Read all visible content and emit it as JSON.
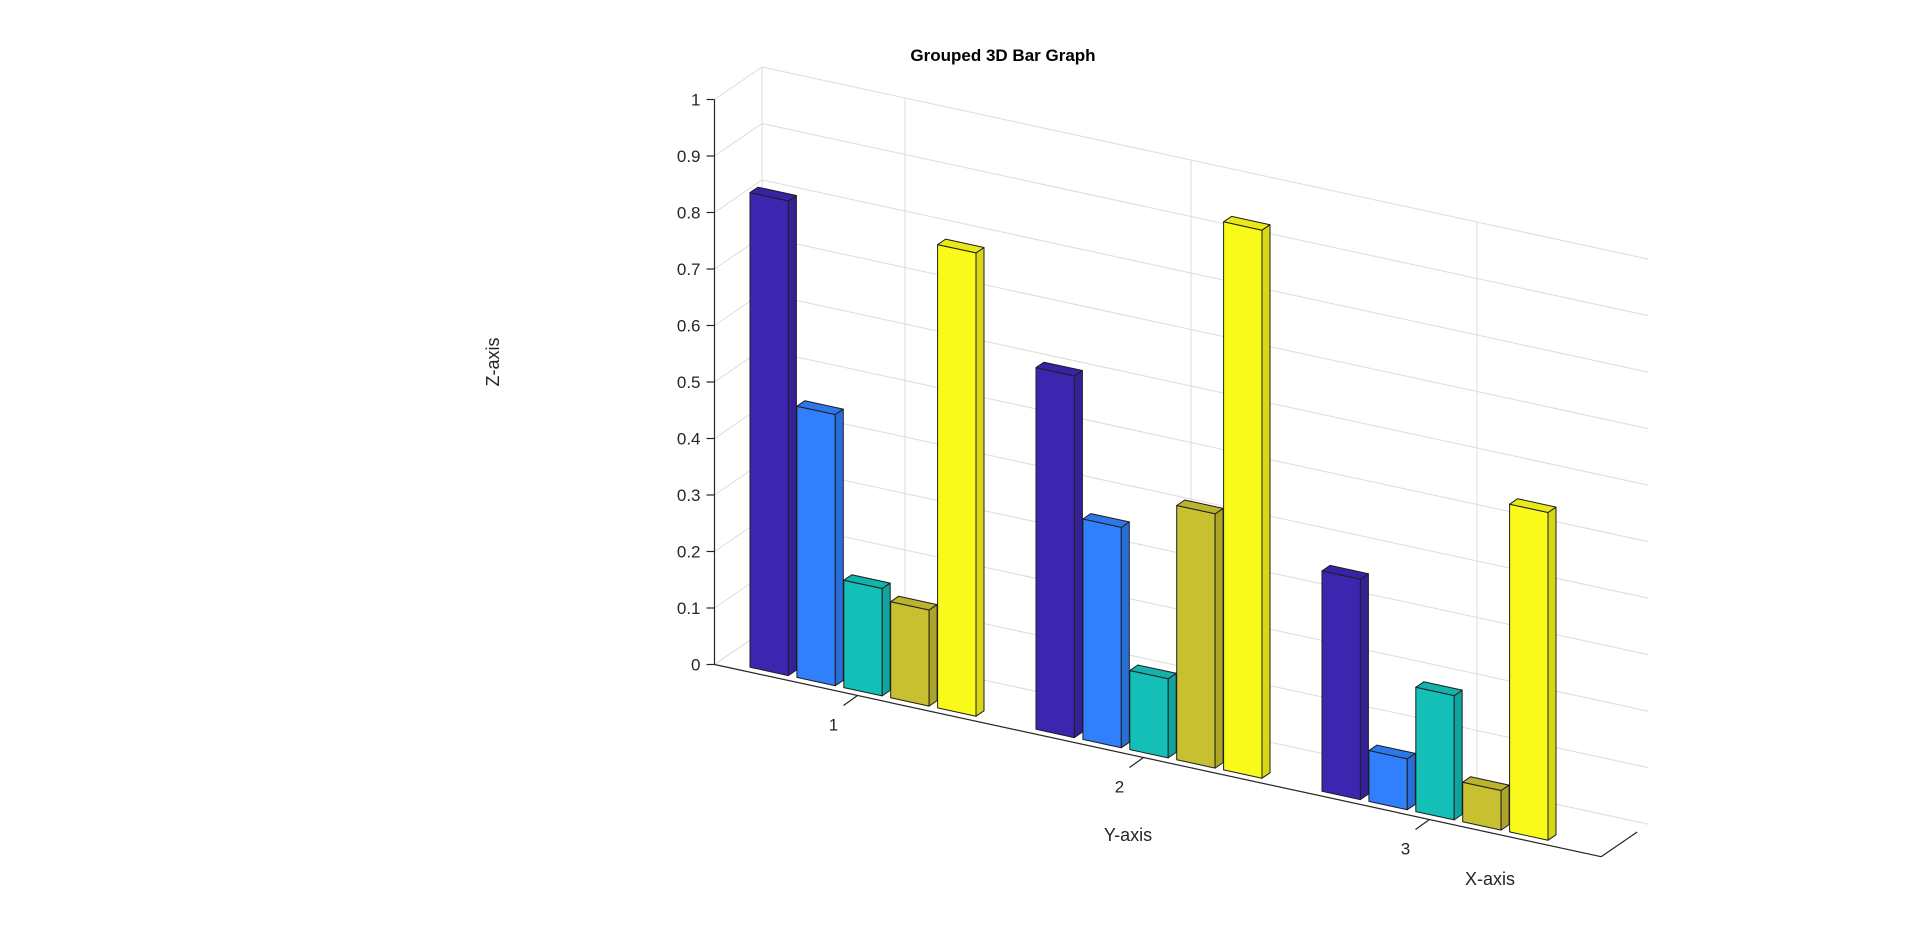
{
  "chart_data": {
    "type": "bar",
    "subtype": "grouped-3d",
    "title": "Grouped 3D Bar Graph",
    "xlabel": "X-axis",
    "ylabel": "Y-axis",
    "zlabel": "Z-axis",
    "categories": [
      "1",
      "2",
      "3"
    ],
    "zlim": [
      0,
      1
    ],
    "zticks": [
      "0",
      "0.1",
      "0.2",
      "0.3",
      "0.4",
      "0.5",
      "0.6",
      "0.7",
      "0.8",
      "0.9",
      "1"
    ],
    "grid": true,
    "series": [
      {
        "color": "#3c26b0",
        "values": [
          0.84,
          0.64,
          0.39
        ]
      },
      {
        "color": "#3080fb",
        "values": [
          0.48,
          0.39,
          0.09
        ]
      },
      {
        "color": "#14bfb8",
        "values": [
          0.19,
          0.14,
          0.22
        ]
      },
      {
        "color": "#c8c030",
        "values": [
          0.17,
          0.45,
          0.07
        ]
      },
      {
        "color": "#fafa1a",
        "values": [
          0.82,
          0.97,
          0.58
        ]
      }
    ]
  }
}
